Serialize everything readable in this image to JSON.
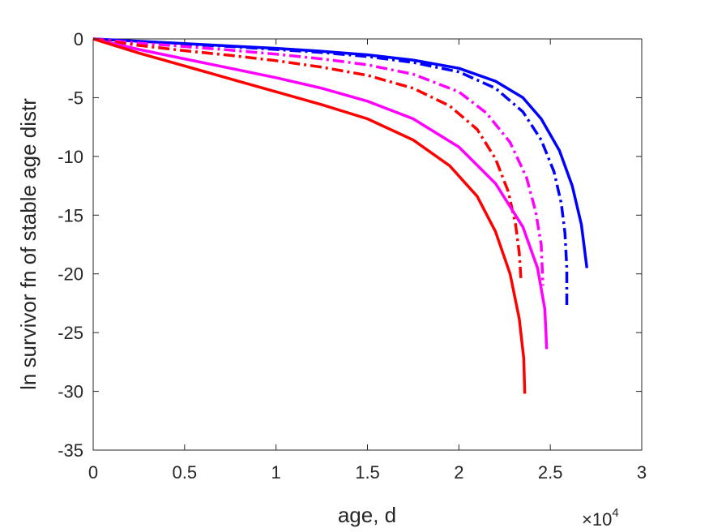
{
  "chart_data": {
    "type": "line",
    "xlabel": "age, d",
    "ylabel": "ln survivor fn of stable age distr",
    "x_multiplier_label": "×10",
    "x_multiplier_exponent": "4",
    "xlim": [
      0,
      3
    ],
    "ylim": [
      -35,
      0
    ],
    "xticks": [
      0,
      0.5,
      1,
      1.5,
      2,
      2.5,
      3
    ],
    "xtick_labels": [
      "0",
      "0.5",
      "1",
      "1.5",
      "2",
      "2.5",
      "3"
    ],
    "yticks": [
      0,
      -5,
      -10,
      -15,
      -20,
      -25,
      -30,
      -35
    ],
    "ytick_labels": [
      "0",
      "-5",
      "-10",
      "-15",
      "-20",
      "-25",
      "-30",
      "-35"
    ],
    "grid": false,
    "series": [
      {
        "color": "#0000ff",
        "line_style": "solid",
        "x": [
          0,
          0.25,
          0.5,
          0.75,
          1.0,
          1.25,
          1.5,
          1.75,
          2.0,
          2.2,
          2.35,
          2.45,
          2.55,
          2.62,
          2.67,
          2.7
        ],
        "y": [
          0,
          -0.2,
          -0.4,
          -0.6,
          -0.8,
          -1.05,
          -1.35,
          -1.8,
          -2.5,
          -3.6,
          -5.0,
          -6.8,
          -9.5,
          -12.5,
          -15.8,
          -19.5
        ]
      },
      {
        "color": "#0000ff",
        "line_style": "dashdot",
        "x": [
          0,
          0.25,
          0.5,
          0.75,
          1.0,
          1.25,
          1.5,
          1.75,
          2.0,
          2.2,
          2.35,
          2.45,
          2.52,
          2.56,
          2.58,
          2.59,
          2.59
        ],
        "y": [
          0,
          -0.25,
          -0.45,
          -0.65,
          -0.9,
          -1.15,
          -1.5,
          -2.0,
          -2.8,
          -4.2,
          -6.2,
          -8.6,
          -11.3,
          -14.0,
          -16.5,
          -19.5,
          -22.8
        ]
      },
      {
        "color": "#ff00ff",
        "line_style": "dashdot",
        "x": [
          0,
          0.25,
          0.5,
          0.75,
          1.0,
          1.25,
          1.5,
          1.75,
          2.0,
          2.15,
          2.28,
          2.37,
          2.42,
          2.45,
          2.46
        ],
        "y": [
          0,
          -0.35,
          -0.65,
          -0.95,
          -1.3,
          -1.7,
          -2.2,
          -3.0,
          -4.5,
          -6.3,
          -8.8,
          -11.8,
          -14.7,
          -17.5,
          -21.0
        ]
      },
      {
        "color": "#ff0000",
        "line_style": "dashdot",
        "x": [
          0,
          0.25,
          0.5,
          0.75,
          1.0,
          1.25,
          1.5,
          1.75,
          1.95,
          2.1,
          2.2,
          2.27,
          2.31,
          2.33,
          2.34
        ],
        "y": [
          0,
          -0.55,
          -1.0,
          -1.4,
          -1.85,
          -2.4,
          -3.1,
          -4.2,
          -5.7,
          -7.7,
          -10.2,
          -13.0,
          -15.8,
          -18.2,
          -20.6
        ]
      },
      {
        "color": "#ff00ff",
        "line_style": "solid",
        "x": [
          0,
          0.25,
          0.5,
          0.75,
          1.0,
          1.25,
          1.5,
          1.75,
          2.0,
          2.2,
          2.35,
          2.43,
          2.47,
          2.48
        ],
        "y": [
          0,
          -0.9,
          -1.7,
          -2.5,
          -3.3,
          -4.2,
          -5.3,
          -6.8,
          -9.2,
          -12.3,
          -16.0,
          -19.5,
          -23.0,
          -26.4
        ]
      },
      {
        "color": "#ff0000",
        "line_style": "solid",
        "x": [
          0,
          0.25,
          0.5,
          0.75,
          1.0,
          1.25,
          1.5,
          1.75,
          1.95,
          2.1,
          2.2,
          2.28,
          2.33,
          2.355,
          2.36
        ],
        "y": [
          0,
          -1.2,
          -2.3,
          -3.4,
          -4.5,
          -5.6,
          -6.8,
          -8.6,
          -10.8,
          -13.4,
          -16.4,
          -20.0,
          -23.8,
          -27.2,
          -30.2
        ]
      }
    ]
  }
}
